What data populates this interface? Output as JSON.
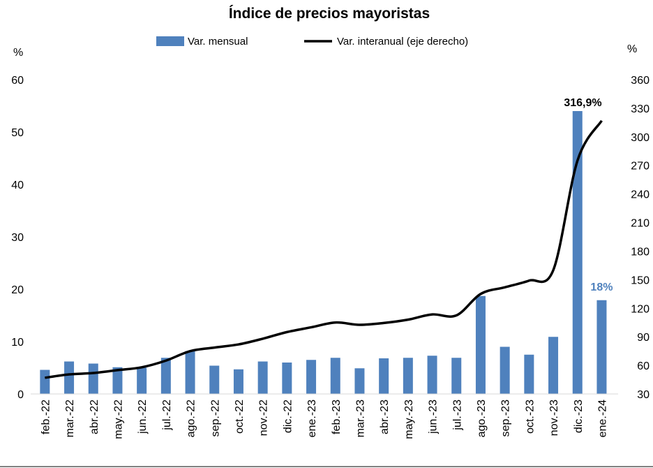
{
  "colors": {
    "bar": "#4f81bd",
    "line": "#000000",
    "annotation_bar": "#4f81bd",
    "annotation_line": "#000000"
  },
  "chart_data": {
    "type": "bar",
    "title": "Índice de precios mayoristas",
    "left_axis_unit": "%",
    "right_axis_unit": "%",
    "ylim_left": [
      0,
      60
    ],
    "yticks_left": [
      "0",
      "10",
      "20",
      "30",
      "40",
      "50",
      "60"
    ],
    "ylim_right": [
      30,
      360
    ],
    "yticks_right": [
      "30",
      "60",
      "90",
      "120",
      "150",
      "180",
      "210",
      "240",
      "270",
      "300",
      "330",
      "360"
    ],
    "grid": false,
    "legend_position": "top",
    "categories": [
      "feb.-22",
      "mar.-22",
      "abr.-22",
      "may.-22",
      "jun.-22",
      "jul.-22",
      "ago.-22",
      "sep.-22",
      "oct.-22",
      "nov.-22",
      "dic.-22",
      "ene.-23",
      "feb.-23",
      "mar.-23",
      "abr.-23",
      "may.-23",
      "jun.-23",
      "jul.-23",
      "ago.-23",
      "sep.-23",
      "oct.-23",
      "nov.-23",
      "dic.-23",
      "ene.-24"
    ],
    "series": [
      {
        "name": "Var. mensual",
        "type": "bar",
        "axis": "left",
        "values": [
          4.6,
          6.2,
          5.8,
          5.1,
          5.0,
          6.9,
          8.2,
          5.4,
          4.7,
          6.2,
          6.0,
          6.5,
          6.9,
          4.9,
          6.8,
          6.9,
          7.3,
          6.9,
          18.7,
          9.0,
          7.5,
          10.9,
          54.0,
          17.9
        ]
      },
      {
        "name": "Var. interanual (eje derecho)",
        "type": "line",
        "axis": "right",
        "values": [
          47.0,
          50.5,
          52.0,
          55.0,
          58.0,
          65.0,
          75.0,
          78.7,
          82.0,
          88.0,
          95.0,
          100.0,
          105.0,
          102.6,
          104.5,
          108.0,
          113.5,
          112.5,
          135.0,
          142.0,
          149.0,
          160.0,
          275.0,
          316.9
        ]
      }
    ],
    "annotations": [
      {
        "text": "316,9%",
        "series": "Var. interanual (eje derecho)"
      },
      {
        "text": "18%",
        "series": "Var. mensual"
      }
    ]
  }
}
